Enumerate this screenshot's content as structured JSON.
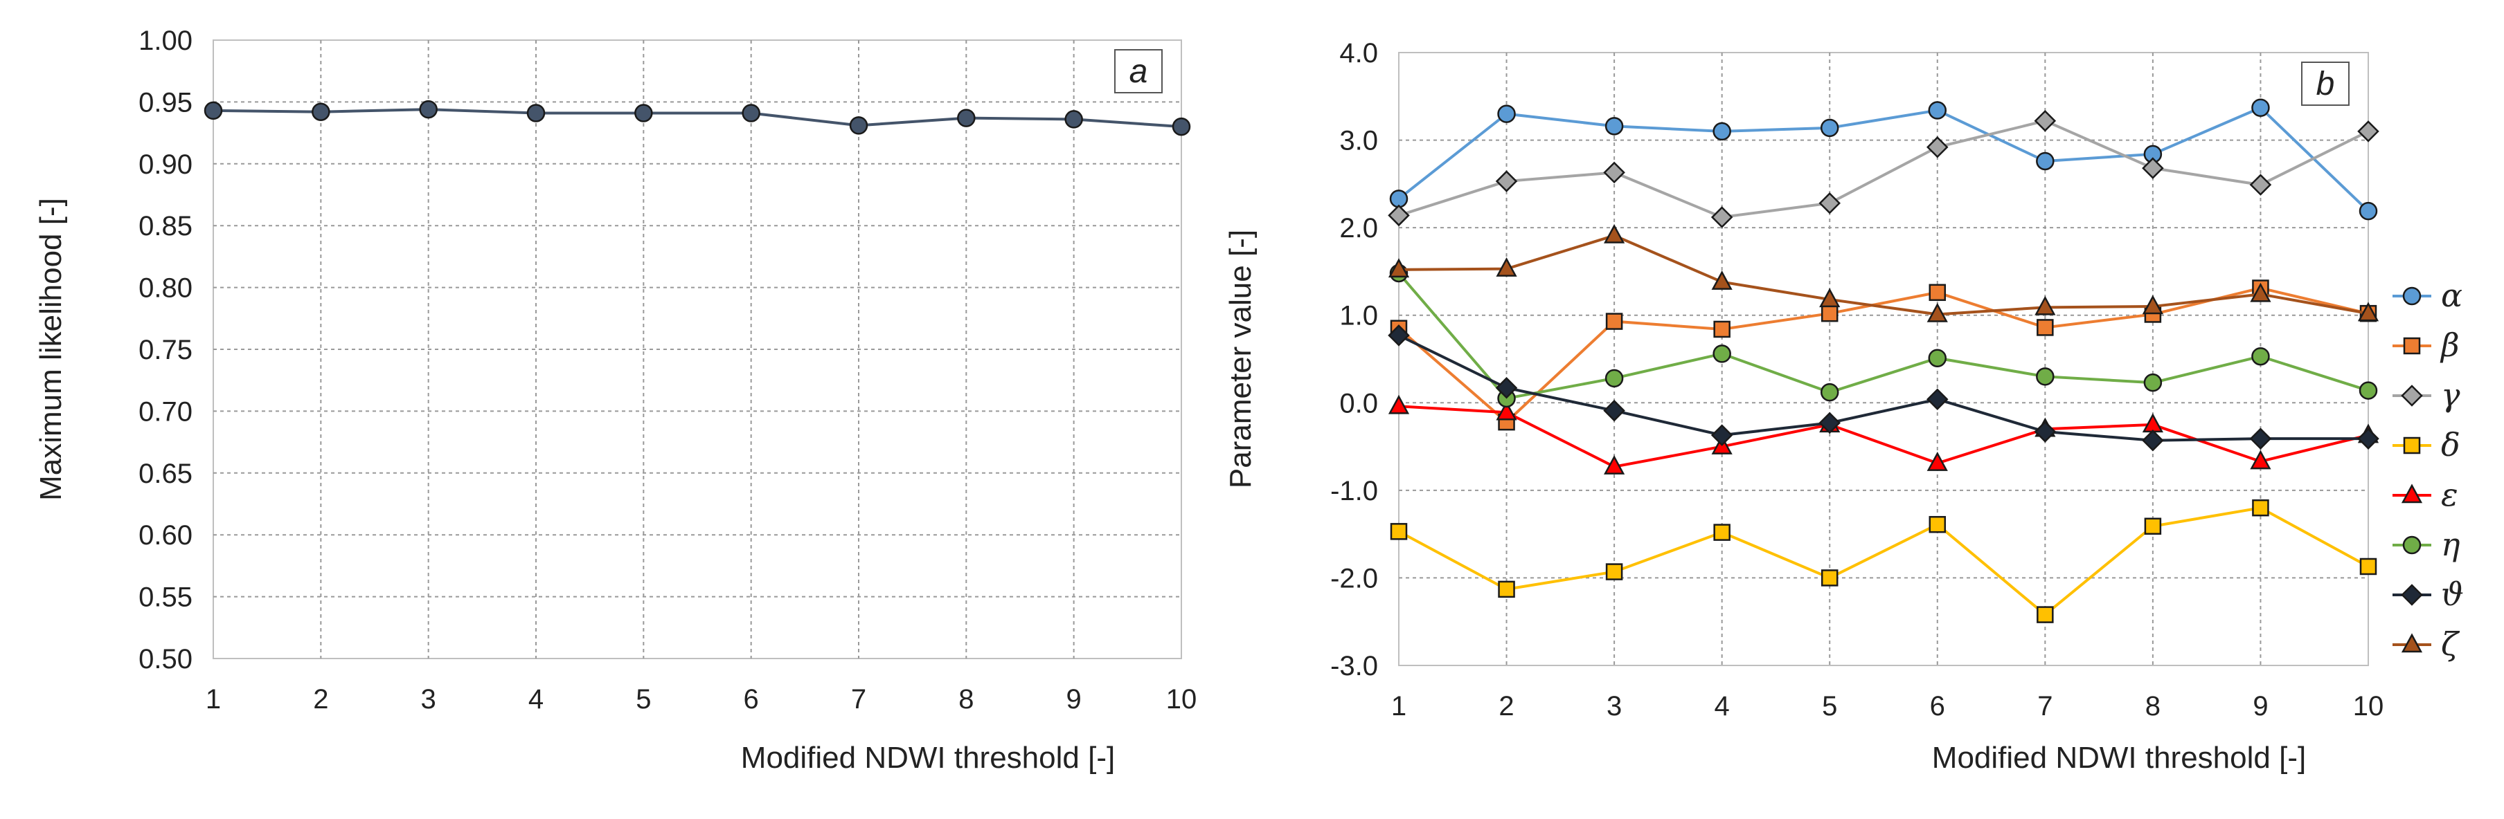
{
  "chart_data": [
    {
      "type": "line",
      "panel_label": "a",
      "xlabel": "Modified NDWI threshold [-]",
      "ylabel": "Maximum likelihood [-]",
      "categories": [
        1,
        2,
        3,
        4,
        5,
        6,
        7,
        8,
        9,
        10
      ],
      "ylim": [
        0.5,
        1.0
      ],
      "ytick_step": 0.05,
      "ytick_decimals": 2,
      "grid": true,
      "series": [
        {
          "name": "Maximum likelihood",
          "color": "#44546A",
          "marker": "circle",
          "values": [
            0.943,
            0.942,
            0.944,
            0.941,
            0.941,
            0.941,
            0.931,
            0.937,
            0.936,
            0.93
          ]
        }
      ]
    },
    {
      "type": "line",
      "panel_label": "b",
      "xlabel": "Modified NDWI threshold [-]",
      "ylabel": "Parameter value [-]",
      "categories": [
        1,
        2,
        3,
        4,
        5,
        6,
        7,
        8,
        9,
        10
      ],
      "ylim": [
        -3.0,
        4.0
      ],
      "ytick_step": 1.0,
      "ytick_decimals": 1,
      "grid": true,
      "legend_position": "right",
      "series": [
        {
          "name": "α",
          "color": "#5B9BD5",
          "marker": "circle",
          "values": [
            2.33,
            3.3,
            3.16,
            3.1,
            3.14,
            3.34,
            2.76,
            2.84,
            3.37,
            2.19
          ]
        },
        {
          "name": "β",
          "color": "#ED7D31",
          "marker": "square",
          "values": [
            0.85,
            -0.22,
            0.93,
            0.84,
            1.02,
            1.26,
            0.86,
            1.01,
            1.31,
            1.02
          ]
        },
        {
          "name": "γ",
          "color": "#A5A5A5",
          "marker": "diamond",
          "values": [
            2.14,
            2.53,
            2.63,
            2.12,
            2.28,
            2.92,
            3.22,
            2.68,
            2.49,
            3.1
          ]
        },
        {
          "name": "δ",
          "color": "#FFC000",
          "marker": "square",
          "values": [
            -1.47,
            -2.13,
            -1.93,
            -1.48,
            -2.0,
            -1.39,
            -2.42,
            -1.41,
            -1.2,
            -1.87
          ]
        },
        {
          "name": "ε",
          "color": "#FF0000",
          "marker": "triangle",
          "values": [
            -0.04,
            -0.11,
            -0.73,
            -0.5,
            -0.25,
            -0.69,
            -0.3,
            -0.25,
            -0.67,
            -0.37
          ]
        },
        {
          "name": "η",
          "color": "#70AD47",
          "marker": "circle",
          "values": [
            1.48,
            0.05,
            0.28,
            0.56,
            0.12,
            0.51,
            0.3,
            0.23,
            0.53,
            0.14
          ]
        },
        {
          "name": "ϑ",
          "color": "#1F2937",
          "marker": "diamond",
          "values": [
            0.77,
            0.17,
            -0.09,
            -0.37,
            -0.23,
            0.04,
            -0.33,
            -0.43,
            -0.41,
            -0.41
          ]
        },
        {
          "name": "ζ",
          "color": "#A5521C",
          "marker": "triangle",
          "values": [
            1.52,
            1.53,
            1.91,
            1.38,
            1.18,
            1.01,
            1.09,
            1.1,
            1.24,
            1.02
          ]
        }
      ]
    }
  ]
}
